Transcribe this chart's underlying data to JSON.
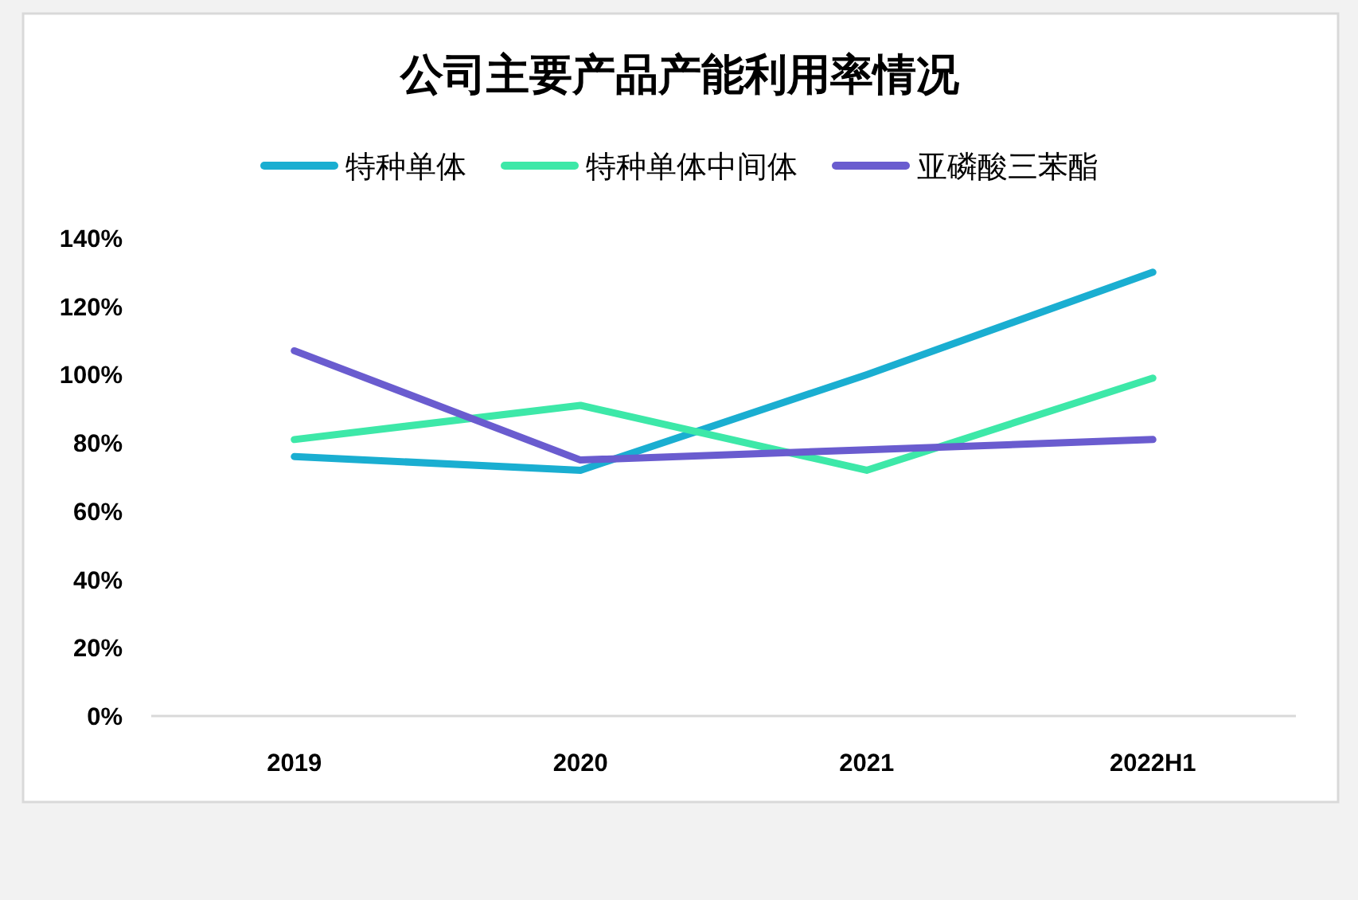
{
  "chart_data": {
    "type": "line",
    "title": "公司主要产品产能利用率情况",
    "categories": [
      "2019",
      "2020",
      "2021",
      "2022H1"
    ],
    "series": [
      {
        "name": "特种单体",
        "color": "#1aaed1",
        "values": [
          76,
          72,
          100,
          130
        ]
      },
      {
        "name": "特种单体中间体",
        "color": "#3de8a8",
        "values": [
          81,
          91,
          72,
          99
        ]
      },
      {
        "name": "亚磷酸三苯酯",
        "color": "#6a5ccf",
        "values": [
          107,
          75,
          78,
          81
        ]
      }
    ],
    "ylim": [
      0,
      140
    ],
    "yticks": [
      {
        "value": 0,
        "label": "0%"
      },
      {
        "value": 20,
        "label": "20%"
      },
      {
        "value": 40,
        "label": "40%"
      },
      {
        "value": 60,
        "label": "60%"
      },
      {
        "value": 80,
        "label": "80%"
      },
      {
        "value": 100,
        "label": "100%"
      },
      {
        "value": 120,
        "label": "120%"
      },
      {
        "value": 140,
        "label": "140%"
      }
    ],
    "legend": "top"
  }
}
